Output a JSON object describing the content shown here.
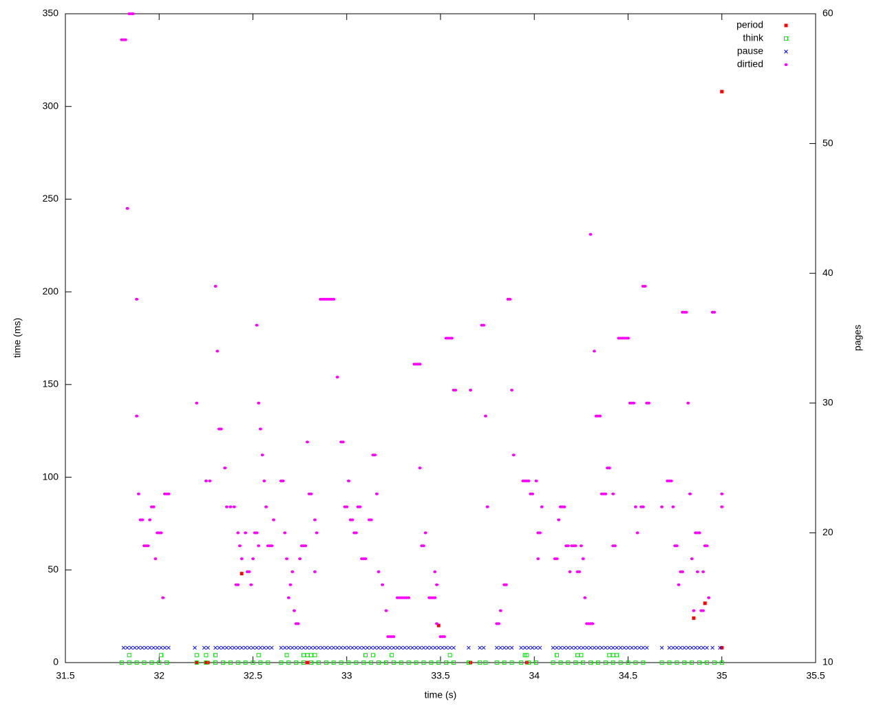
{
  "chart_data": {
    "type": "scatter",
    "xlabel": "time (s)",
    "ylabel": "time (ms)",
    "y2label": "pages",
    "xlim": [
      31.5,
      35.5
    ],
    "xticks": [
      31.5,
      32,
      32.5,
      33,
      33.5,
      34,
      34.5,
      35,
      35.5
    ],
    "ylim": [
      0,
      350
    ],
    "yticks": [
      0,
      50,
      100,
      150,
      200,
      250,
      300,
      350
    ],
    "y2lim": [
      10,
      60
    ],
    "y2ticks": [
      10,
      20,
      30,
      40,
      50,
      60
    ],
    "legend": "upper right",
    "series": [
      {
        "name": "period",
        "color": "#ff0000",
        "marker": "square",
        "x": [
          32.2,
          32.25,
          32.26,
          32.44,
          32.79,
          33.49,
          33.66,
          33.96,
          34.85,
          34.91,
          35.0,
          35.0
        ],
        "values": [
          0,
          0,
          0,
          48,
          0,
          20,
          0,
          0,
          24,
          32,
          308,
          8
        ]
      },
      {
        "name": "think",
        "color": "#00e000",
        "marker": "open-square",
        "x": [
          31.8,
          31.84,
          31.88,
          31.92,
          31.96,
          32.0,
          32.04,
          32.2,
          32.25,
          32.3,
          32.34,
          32.38,
          32.42,
          32.46,
          32.5,
          32.54,
          32.58,
          32.65,
          32.69,
          32.73,
          32.77,
          32.81,
          32.85,
          32.89,
          32.93,
          32.97,
          33.01,
          33.05,
          33.09,
          33.13,
          33.17,
          33.21,
          33.25,
          33.29,
          33.33,
          33.37,
          33.41,
          33.45,
          33.49,
          33.53,
          33.57,
          33.65,
          33.71,
          33.74,
          33.8,
          33.84,
          33.88,
          33.93,
          33.97,
          34.01,
          34.1,
          34.14,
          34.18,
          34.22,
          34.26,
          34.3,
          34.34,
          34.38,
          34.42,
          34.46,
          34.5,
          34.54,
          34.58,
          34.68,
          34.72,
          34.76,
          34.8,
          34.84,
          34.88,
          34.92,
          34.96,
          35.0,
          31.84,
          32.01,
          32.2,
          32.25,
          32.3,
          32.53,
          32.68,
          32.77,
          32.79,
          32.81,
          32.83,
          33.1,
          33.14,
          33.24,
          33.55,
          33.95,
          33.96,
          34.12,
          34.23,
          34.25,
          34.4,
          34.42,
          34.44
        ],
        "values": [
          0,
          0,
          0,
          0,
          0,
          0,
          0,
          0,
          0,
          0,
          0,
          0,
          0,
          0,
          0,
          0,
          0,
          0,
          0,
          0,
          0,
          0,
          0,
          0,
          0,
          0,
          0,
          0,
          0,
          0,
          0,
          0,
          0,
          0,
          0,
          0,
          0,
          0,
          0,
          0,
          0,
          0,
          0,
          0,
          0,
          0,
          0,
          0,
          0,
          0,
          0,
          0,
          0,
          0,
          0,
          0,
          0,
          0,
          0,
          0,
          0,
          0,
          0,
          0,
          0,
          0,
          0,
          0,
          0,
          0,
          0,
          0,
          4,
          4,
          4,
          4,
          4,
          4,
          4,
          4,
          4,
          4,
          4,
          4,
          4,
          4,
          4,
          4,
          4,
          4,
          4,
          4,
          4,
          4,
          4
        ]
      },
      {
        "name": "pause",
        "color": "#0000ff",
        "marker": "x",
        "x": [
          31.81,
          31.83,
          31.85,
          31.87,
          31.89,
          31.91,
          31.93,
          31.95,
          31.97,
          31.99,
          32.01,
          32.03,
          32.05,
          32.19,
          32.24,
          32.26,
          32.3,
          32.32,
          32.34,
          32.36,
          32.38,
          32.4,
          32.42,
          32.44,
          32.46,
          32.48,
          32.5,
          32.52,
          32.54,
          32.56,
          32.58,
          32.6,
          32.65,
          32.67,
          32.69,
          32.71,
          32.73,
          32.75,
          32.77,
          32.79,
          32.81,
          32.83,
          32.85,
          32.87,
          32.89,
          32.91,
          32.93,
          32.95,
          32.97,
          32.99,
          33.01,
          33.03,
          33.05,
          33.07,
          33.09,
          33.11,
          33.13,
          33.15,
          33.17,
          33.19,
          33.21,
          33.23,
          33.25,
          33.27,
          33.29,
          33.31,
          33.33,
          33.35,
          33.37,
          33.39,
          33.41,
          33.43,
          33.45,
          33.47,
          33.49,
          33.51,
          33.53,
          33.55,
          33.57,
          33.65,
          33.71,
          33.73,
          33.8,
          33.82,
          33.84,
          33.86,
          33.88,
          33.93,
          33.95,
          33.97,
          33.99,
          34.01,
          34.03,
          34.1,
          34.12,
          34.14,
          34.16,
          34.18,
          34.2,
          34.22,
          34.24,
          34.26,
          34.28,
          34.3,
          34.32,
          34.34,
          34.36,
          34.38,
          34.4,
          34.42,
          34.44,
          34.46,
          34.48,
          34.5,
          34.52,
          34.54,
          34.56,
          34.58,
          34.6,
          34.68,
          34.72,
          34.74,
          34.76,
          34.78,
          34.8,
          34.82,
          34.84,
          34.86,
          34.88,
          34.9,
          34.92,
          34.95,
          34.99
        ],
        "values": [
          8,
          8,
          8,
          8,
          8,
          8,
          8,
          8,
          8,
          8,
          8,
          8,
          8,
          8,
          8,
          8,
          8,
          8,
          8,
          8,
          8,
          8,
          8,
          8,
          8,
          8,
          8,
          8,
          8,
          8,
          8,
          8,
          8,
          8,
          8,
          8,
          8,
          8,
          8,
          8,
          8,
          8,
          8,
          8,
          8,
          8,
          8,
          8,
          8,
          8,
          8,
          8,
          8,
          8,
          8,
          8,
          8,
          8,
          8,
          8,
          8,
          8,
          8,
          8,
          8,
          8,
          8,
          8,
          8,
          8,
          8,
          8,
          8,
          8,
          8,
          8,
          8,
          8,
          8,
          8,
          8,
          8,
          8,
          8,
          8,
          8,
          8,
          8,
          8,
          8,
          8,
          8,
          8,
          8,
          8,
          8,
          8,
          8,
          8,
          8,
          8,
          8,
          8,
          8,
          8,
          8,
          8,
          8,
          8,
          8,
          8,
          8,
          8,
          8,
          8,
          8,
          8,
          8,
          8,
          8,
          8,
          8,
          8,
          8,
          8,
          8,
          8,
          8,
          8,
          8,
          8,
          8,
          8
        ]
      },
      {
        "name": "dirtied",
        "color": "#ff00ff",
        "marker": "dot",
        "axis": "y2",
        "x": [
          31.8,
          31.81,
          31.82,
          31.84,
          31.85,
          31.86,
          31.83,
          31.88,
          31.88,
          31.89,
          31.9,
          31.91,
          31.92,
          31.93,
          31.94,
          31.95,
          31.96,
          31.97,
          31.98,
          31.99,
          32.0,
          32.01,
          32.02,
          32.03,
          32.04,
          32.05,
          32.2,
          32.25,
          32.27,
          32.3,
          32.31,
          32.32,
          32.33,
          32.35,
          32.36,
          32.38,
          32.4,
          32.41,
          32.42,
          32.42,
          32.43,
          32.44,
          32.46,
          32.47,
          32.48,
          32.49,
          32.5,
          32.51,
          32.52,
          32.53,
          32.52,
          32.53,
          32.54,
          32.55,
          32.56,
          32.57,
          32.58,
          32.59,
          32.6,
          32.61,
          32.65,
          32.66,
          32.67,
          32.68,
          32.69,
          32.7,
          32.71,
          32.72,
          32.73,
          32.74,
          32.75,
          32.76,
          32.77,
          32.78,
          32.79,
          32.8,
          32.81,
          32.83,
          32.84,
          32.83,
          32.86,
          32.87,
          32.88,
          32.89,
          32.9,
          32.91,
          32.92,
          32.93,
          32.95,
          32.97,
          32.98,
          32.99,
          33.0,
          33.01,
          33.02,
          33.03,
          33.04,
          33.05,
          33.06,
          33.07,
          33.08,
          33.09,
          33.1,
          33.12,
          33.13,
          33.14,
          33.15,
          33.16,
          33.17,
          33.19,
          33.21,
          33.22,
          33.23,
          33.24,
          33.25,
          33.27,
          33.28,
          33.29,
          33.3,
          33.31,
          33.32,
          33.33,
          33.36,
          33.37,
          33.38,
          33.39,
          33.39,
          33.4,
          33.41,
          33.42,
          33.44,
          33.45,
          33.46,
          33.47,
          33.47,
          33.48,
          33.48,
          33.5,
          33.51,
          33.52,
          33.53,
          33.54,
          33.55,
          33.56,
          33.57,
          33.58,
          33.66,
          33.72,
          33.73,
          33.74,
          33.75,
          33.8,
          33.81,
          33.82,
          33.84,
          33.85,
          33.86,
          33.87,
          33.88,
          33.89,
          33.94,
          33.95,
          33.96,
          33.97,
          33.98,
          33.99,
          34.01,
          34.02,
          34.02,
          34.03,
          34.04,
          34.11,
          34.12,
          34.13,
          34.14,
          34.15,
          34.16,
          34.17,
          34.18,
          34.19,
          34.2,
          34.21,
          34.22,
          34.23,
          34.24,
          34.25,
          34.26,
          34.27,
          34.28,
          34.29,
          34.3,
          34.31,
          34.3,
          34.32,
          34.33,
          34.34,
          34.35,
          34.36,
          34.37,
          34.38,
          34.39,
          34.4,
          34.42,
          34.42,
          34.43,
          34.45,
          34.46,
          34.47,
          34.48,
          34.49,
          34.5,
          34.51,
          34.52,
          34.53,
          34.54,
          34.55,
          34.57,
          34.58,
          34.58,
          34.59,
          34.6,
          34.61,
          34.68,
          34.71,
          34.72,
          34.73,
          34.74,
          34.75,
          34.76,
          34.77,
          34.78,
          34.79,
          34.79,
          34.8,
          34.81,
          34.82,
          34.83,
          34.84,
          34.85,
          34.86,
          34.87,
          34.88,
          34.87,
          34.9,
          34.89,
          34.9,
          34.91,
          34.92,
          34.93,
          34.95,
          34.96,
          35.0,
          35.0
        ],
        "values": [
          58,
          58,
          58,
          60,
          60,
          60,
          45,
          38,
          29,
          23,
          21,
          21,
          19,
          19,
          19,
          21,
          22,
          22,
          18,
          20,
          20,
          20,
          15,
          23,
          23,
          23,
          30,
          24,
          24,
          39,
          34,
          28,
          28,
          25,
          22,
          22,
          22,
          16,
          16,
          20,
          19,
          18,
          20,
          17,
          17,
          16,
          18,
          20,
          20,
          19,
          36,
          30,
          28,
          26,
          24,
          22,
          19,
          19,
          19,
          21,
          24,
          24,
          20,
          18,
          15,
          16,
          17,
          14,
          13,
          13,
          18,
          19,
          19,
          19,
          27,
          23,
          23,
          21,
          20,
          17,
          38,
          38,
          38,
          38,
          38,
          38,
          38,
          38,
          32,
          27,
          27,
          22,
          22,
          24,
          21,
          21,
          20,
          20,
          22,
          22,
          18,
          18,
          18,
          21,
          21,
          26,
          26,
          23,
          17,
          16,
          14,
          12,
          12,
          12,
          12,
          15,
          15,
          15,
          15,
          15,
          15,
          15,
          33,
          33,
          33,
          33,
          25,
          19,
          19,
          20,
          15,
          15,
          15,
          15,
          17,
          13,
          16,
          12,
          12,
          12,
          35,
          35,
          35,
          35,
          31,
          31,
          31,
          36,
          36,
          29,
          22,
          13,
          13,
          14,
          16,
          16,
          38,
          38,
          31,
          26,
          24,
          24,
          24,
          24,
          23,
          23,
          24,
          18,
          20,
          20,
          22,
          18,
          18,
          21,
          22,
          22,
          22,
          19,
          19,
          17,
          19,
          19,
          19,
          17,
          17,
          19,
          18,
          15,
          13,
          13,
          13,
          13,
          43,
          34,
          29,
          29,
          29,
          23,
          23,
          23,
          25,
          25,
          23,
          19,
          19,
          35,
          35,
          35,
          35,
          35,
          35,
          30,
          30,
          30,
          22,
          20,
          22,
          22,
          39,
          39,
          30,
          30,
          22,
          24,
          24,
          24,
          22,
          19,
          19,
          16,
          17,
          17,
          37,
          37,
          37,
          30,
          23,
          18,
          14,
          20,
          20,
          20,
          17,
          17,
          14,
          14,
          19,
          19,
          15,
          37,
          37,
          23,
          22
        ]
      }
    ]
  }
}
